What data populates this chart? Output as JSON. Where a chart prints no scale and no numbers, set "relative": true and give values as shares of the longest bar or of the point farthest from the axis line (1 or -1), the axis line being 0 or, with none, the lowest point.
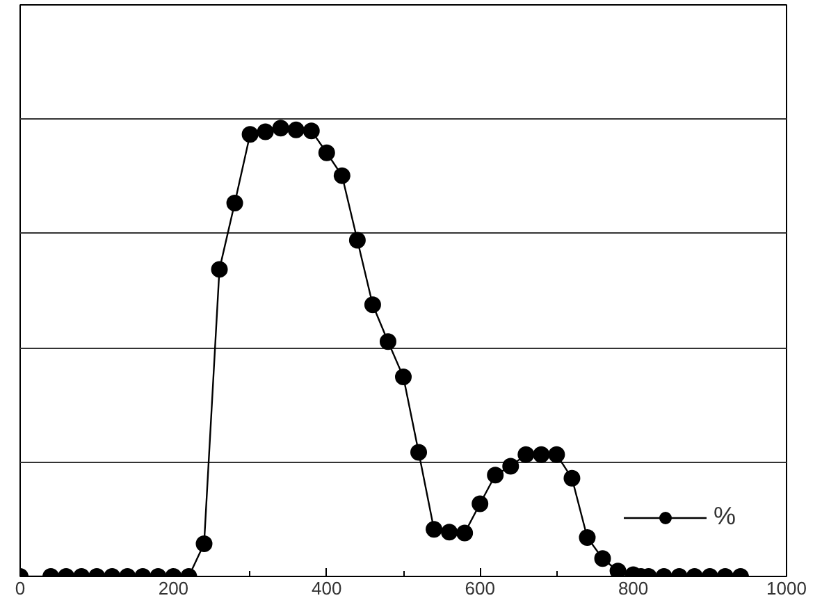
{
  "chart_data": {
    "type": "line",
    "relative": true,
    "x": [
      0,
      40,
      60,
      80,
      100,
      120,
      140,
      160,
      180,
      200,
      220,
      240,
      260,
      280,
      300,
      320,
      340,
      360,
      380,
      400,
      420,
      440,
      460,
      480,
      500,
      520,
      540,
      560,
      580,
      600,
      620,
      640,
      660,
      680,
      700,
      720,
      740,
      760,
      780,
      800,
      810,
      820,
      840,
      860,
      880,
      900,
      920,
      940
    ],
    "series": [
      {
        "name": "%",
        "color": "#000000",
        "values": [
          0,
          0,
          0,
          0,
          0,
          0,
          0,
          0,
          0,
          0,
          0,
          0.073,
          0.685,
          0.833,
          0.986,
          0.992,
          1,
          0.996,
          0.994,
          0.945,
          0.894,
          0.75,
          0.606,
          0.524,
          0.445,
          0.277,
          0.105,
          0.099,
          0.097,
          0.162,
          0.226,
          0.246,
          0.272,
          0.272,
          0.272,
          0.219,
          0.087,
          0.04,
          0.012,
          0.004,
          0,
          0,
          0,
          0,
          0,
          0,
          0,
          0
        ]
      }
    ],
    "xlim": [
      0,
      1000
    ],
    "xticks": [
      0,
      200,
      400,
      600,
      800,
      1000
    ],
    "marker": "circle",
    "line_style": "solid",
    "grid": "y",
    "legend": "bottom right"
  }
}
